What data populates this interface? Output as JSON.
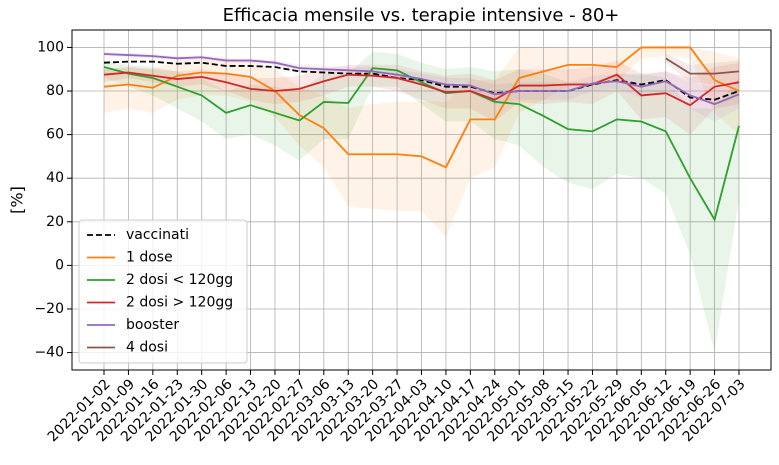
{
  "chart_data": {
    "type": "line",
    "title": "Efficacia mensile vs. terapie intensive - 80+",
    "y_label": "[%]",
    "categories": [
      "2022-01-02",
      "2022-01-09",
      "2022-01-16",
      "2022-01-23",
      "2022-01-30",
      "2022-02-06",
      "2022-02-13",
      "2022-02-20",
      "2022-02-27",
      "2022-03-06",
      "2022-03-13",
      "2022-03-20",
      "2022-03-27",
      "2022-04-03",
      "2022-04-10",
      "2022-04-17",
      "2022-04-24",
      "2022-05-01",
      "2022-05-08",
      "2022-05-15",
      "2022-05-22",
      "2022-05-29",
      "2022-06-05",
      "2022-06-12",
      "2022-06-19",
      "2022-06-26",
      "2022-07-03"
    ],
    "ylim": [
      -48,
      108
    ],
    "yticks": [
      {
        "value": -40,
        "label": "−40"
      },
      {
        "value": -20,
        "label": "−20"
      },
      0,
      20,
      40,
      60,
      80,
      100
    ],
    "grid": true,
    "legend": "lower left",
    "series": [
      {
        "name": "vaccinati",
        "color": "#000000",
        "dashed": true,
        "values": [
          93,
          93.5,
          93.5,
          92.5,
          93,
          91.5,
          91.5,
          91,
          89,
          88.5,
          88,
          88,
          86,
          85,
          82,
          82,
          79,
          80,
          80,
          80,
          83,
          85,
          83,
          85,
          77,
          76,
          80
        ]
      },
      {
        "name": "1 dose",
        "color": "#ff7f0e",
        "values": [
          82,
          83,
          81.5,
          87,
          88.5,
          88,
          86.5,
          80,
          69,
          63,
          51,
          51,
          51,
          50,
          45,
          67,
          67,
          86,
          89,
          92,
          92,
          91,
          100,
          100,
          100,
          85,
          80
        ],
        "lower": [
          70,
          72,
          70,
          76,
          78,
          78,
          75,
          68,
          55,
          45,
          27,
          26,
          25,
          25,
          13,
          40,
          45,
          70,
          76,
          82,
          84,
          84,
          95,
          96,
          95,
          70,
          60
        ],
        "upper": [
          90,
          91,
          90,
          94,
          95,
          95,
          94,
          90,
          82,
          78,
          72,
          74,
          75,
          75,
          75,
          85,
          85,
          100,
          100,
          100,
          100,
          100,
          100,
          100,
          100,
          98,
          95
        ]
      },
      {
        "name": "2 dosi < 120gg",
        "color": "#2ca02c",
        "values": [
          91,
          88,
          86,
          82,
          78,
          70,
          73.5,
          70,
          66.5,
          75,
          74.5,
          90.5,
          89.5,
          84,
          79,
          80,
          75,
          74,
          68.5,
          62.5,
          61.5,
          67,
          66,
          61.5,
          40,
          21,
          64
        ],
        "lower": [
          86,
          82,
          78,
          72,
          66,
          58,
          60,
          55,
          48,
          58,
          58,
          82,
          82,
          74,
          66,
          66,
          58,
          55,
          45,
          38,
          35,
          42,
          40,
          33,
          5,
          -40,
          30
        ],
        "upper": [
          94,
          92,
          91,
          89,
          86,
          80,
          83,
          82,
          80,
          88,
          88,
          98,
          97,
          93,
          90,
          91,
          89,
          90,
          88,
          84,
          84,
          88,
          88,
          86,
          72,
          72,
          86
        ]
      },
      {
        "name": "2 dosi > 120gg",
        "color": "#d62728",
        "values": [
          87.5,
          88.5,
          87,
          85.5,
          86.5,
          84,
          81,
          80,
          81,
          84.5,
          87.5,
          87,
          86,
          83,
          79.5,
          80,
          76,
          82.5,
          82.5,
          83,
          83,
          87.5,
          78,
          79,
          73.5,
          82,
          84
        ],
        "lower": [
          84,
          86,
          84,
          82,
          83,
          80,
          76,
          74,
          75,
          78,
          82,
          82,
          80,
          76,
          72,
          72,
          66,
          75,
          74,
          75,
          74,
          80,
          67,
          68,
          60,
          72,
          74
        ],
        "upper": [
          90,
          91,
          90,
          89,
          90,
          88,
          86,
          86,
          87,
          90,
          92,
          92,
          92,
          89,
          87,
          88,
          85,
          90,
          90,
          90,
          91,
          94,
          88,
          89,
          86,
          91,
          93
        ]
      },
      {
        "name": "booster",
        "color": "#9467bd",
        "values": [
          97,
          96.5,
          96,
          95,
          95.5,
          94,
          94,
          93,
          90.5,
          90,
          89.5,
          89,
          87.5,
          85.5,
          83,
          82.5,
          78.5,
          80,
          80,
          80,
          83.5,
          84.5,
          82,
          84.5,
          78,
          74,
          78.5
        ],
        "lower": [
          96,
          95.5,
          95,
          94,
          94.5,
          93,
          93,
          92,
          89,
          88.5,
          88,
          87,
          85,
          83,
          80,
          79,
          74,
          76,
          76,
          76,
          80,
          81,
          77,
          80,
          72,
          66,
          72
        ],
        "upper": [
          98,
          97.5,
          97,
          96,
          96.5,
          95,
          95,
          94,
          92,
          91.5,
          91,
          91,
          90,
          88,
          86,
          86,
          83,
          84,
          84,
          84,
          87,
          88,
          87,
          89,
          84,
          82,
          85
        ]
      },
      {
        "name": "4 dosi",
        "color": "#8c564b",
        "values": [
          null,
          null,
          null,
          null,
          null,
          null,
          null,
          null,
          null,
          null,
          null,
          null,
          null,
          null,
          null,
          null,
          null,
          null,
          null,
          null,
          null,
          null,
          null,
          95,
          88,
          88,
          89
        ],
        "lower": [
          null,
          null,
          null,
          null,
          null,
          null,
          null,
          null,
          null,
          null,
          null,
          null,
          null,
          null,
          null,
          null,
          null,
          null,
          null,
          null,
          null,
          null,
          null,
          93,
          84,
          83,
          84
        ],
        "upper": [
          null,
          null,
          null,
          null,
          null,
          null,
          null,
          null,
          null,
          null,
          null,
          null,
          null,
          null,
          null,
          null,
          null,
          null,
          null,
          null,
          null,
          null,
          null,
          97,
          92,
          93,
          94
        ]
      }
    ]
  }
}
